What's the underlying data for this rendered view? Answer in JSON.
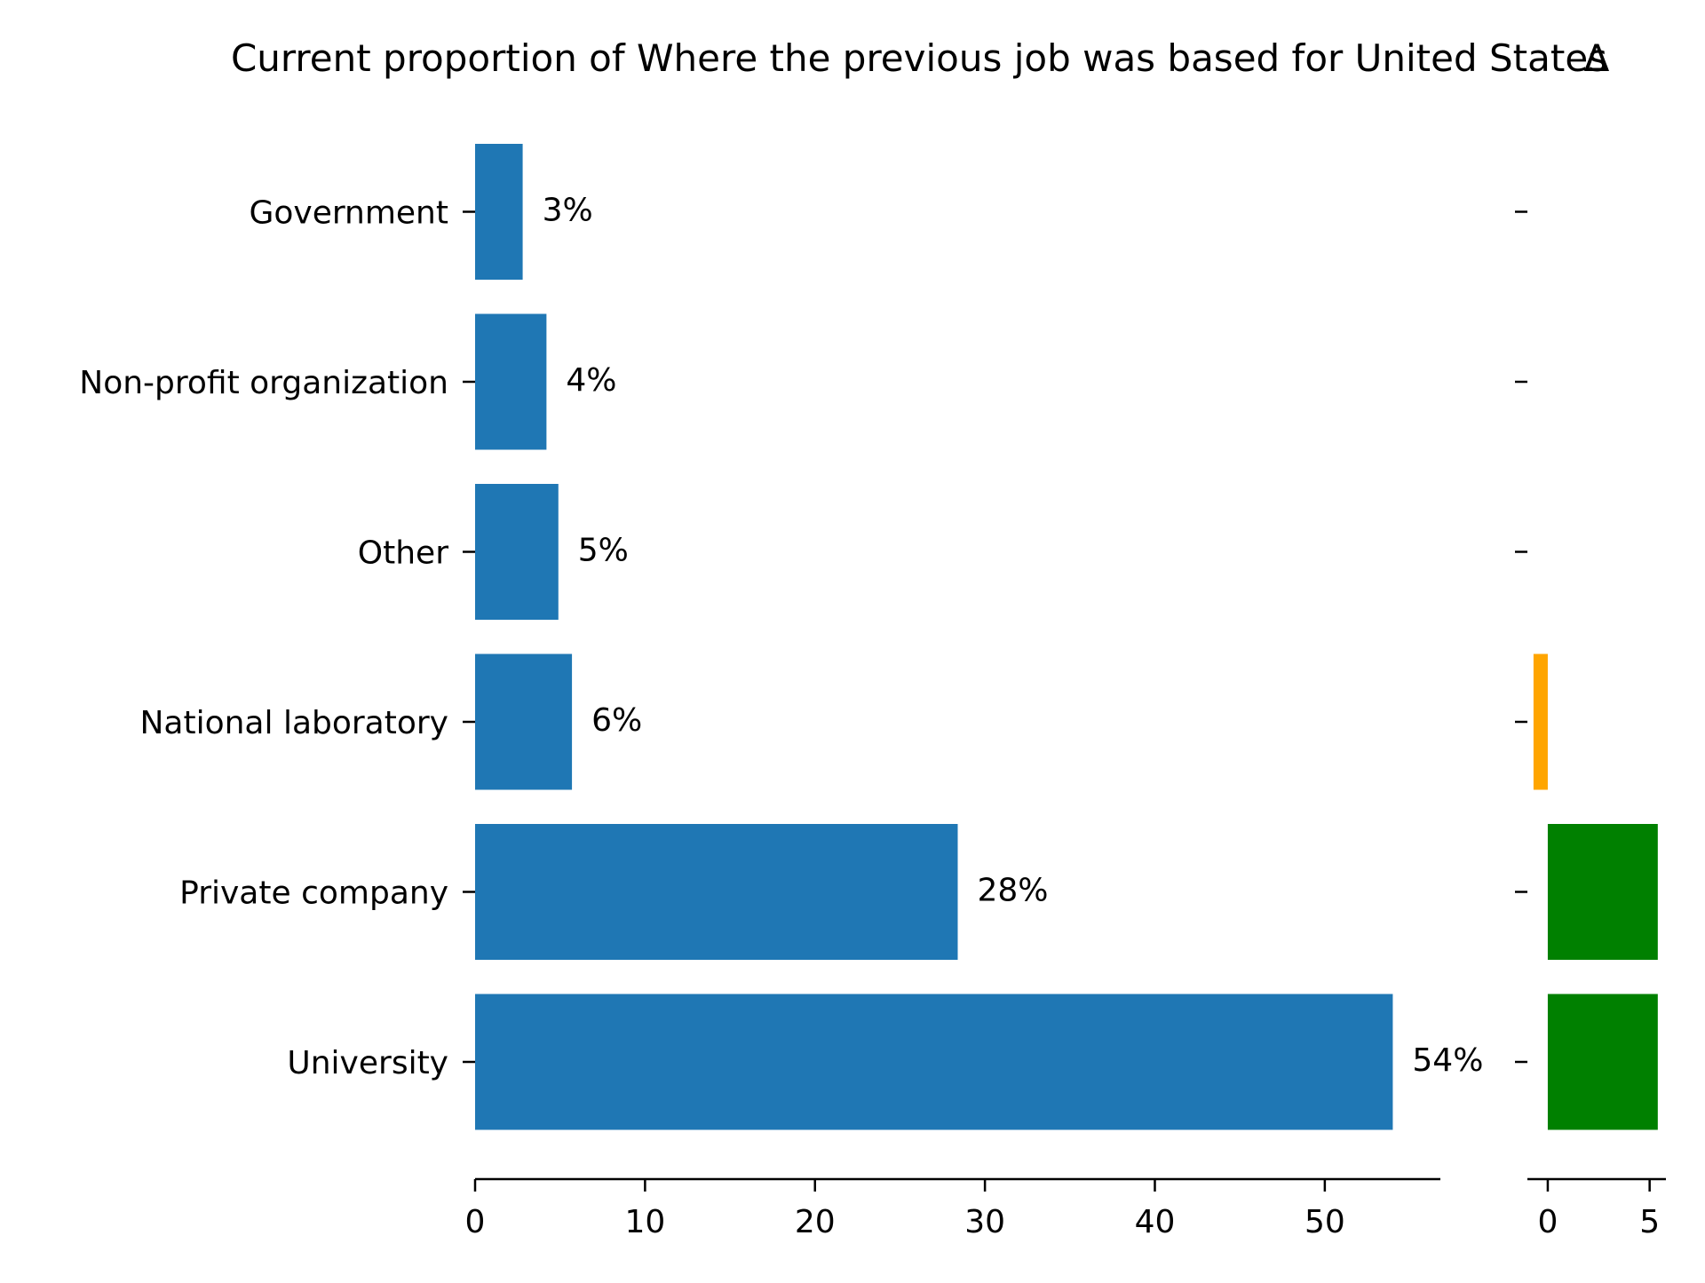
{
  "chart_data": [
    {
      "type": "bar",
      "orientation": "horizontal",
      "title": "Current proportion of Where the previous job was based for United States",
      "categories": [
        "Government",
        "Non-profit organization",
        "Other",
        "National laboratory",
        "Private company",
        "University"
      ],
      "values": [
        2.8,
        4.2,
        4.9,
        5.7,
        28.4,
        54.0
      ],
      "data_labels": [
        "3%",
        "4%",
        "5%",
        "6%",
        "28%",
        "54%"
      ],
      "xlim": [
        0,
        56.8
      ],
      "xticks": [
        0,
        10,
        20,
        30,
        40,
        50
      ],
      "xlabel": "",
      "ylabel": "",
      "grid": false,
      "colors": {
        "bar": "#1f77b4"
      }
    },
    {
      "type": "bar",
      "orientation": "horizontal",
      "title": "Δ",
      "categories": [
        "Government",
        "Non-profit organization",
        "Other",
        "National laboratory",
        "Private company",
        "University"
      ],
      "values": [
        0,
        0,
        0,
        -0.7,
        5.4,
        5.4
      ],
      "xlim": [
        -1,
        5.8
      ],
      "xticks": [
        0,
        5
      ],
      "xlabel": "",
      "ylabel": "",
      "grid": false,
      "colors": {
        "positive": "#008000",
        "negative": "#ffa500"
      }
    }
  ]
}
